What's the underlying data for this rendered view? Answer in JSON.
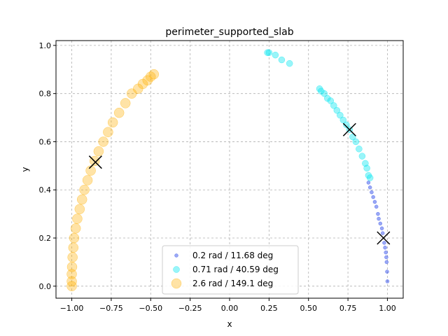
{
  "chart_data": {
    "type": "scatter",
    "title": "perimeter_supported_slab",
    "xlabel": "x",
    "ylabel": "y",
    "xlim": [
      -1.1,
      1.1
    ],
    "ylim": [
      -0.05,
      1.02
    ],
    "xticks": [
      "−1.00",
      "−0.75",
      "−0.50",
      "−0.25",
      "0.00",
      "0.25",
      "0.50",
      "0.75",
      "1.00"
    ],
    "xtick_values": [
      -1.0,
      -0.75,
      -0.5,
      -0.25,
      0.0,
      0.25,
      0.5,
      0.75,
      1.0
    ],
    "yticks": [
      "0.0",
      "0.2",
      "0.4",
      "0.6",
      "0.8",
      "1.0"
    ],
    "ytick_values": [
      0.0,
      0.2,
      0.4,
      0.6,
      0.8,
      1.0
    ],
    "grid": true,
    "legend_position": "lower-center",
    "series": [
      {
        "name": "0.2 rad / 11.68 deg",
        "color": "#1f3fe8",
        "points": [
          [
            0.88,
            0.43
          ],
          [
            0.9,
            0.39
          ],
          [
            0.92,
            0.35
          ],
          [
            0.94,
            0.3
          ],
          [
            0.955,
            0.26
          ],
          [
            0.97,
            0.22
          ],
          [
            0.98,
            0.18
          ],
          [
            0.99,
            0.14
          ],
          [
            0.995,
            0.1
          ],
          [
            0.998,
            0.06
          ],
          [
            1.0,
            0.02
          ],
          [
            0.993,
            0.12
          ],
          [
            0.985,
            0.16
          ],
          [
            0.965,
            0.24
          ],
          [
            0.945,
            0.28
          ],
          [
            0.93,
            0.33
          ],
          [
            0.91,
            0.37
          ],
          [
            0.89,
            0.41
          ]
        ],
        "marker": [
          0.975,
          0.2
        ]
      },
      {
        "name": "0.71 rad / 40.59 deg",
        "color": "#00e5f0",
        "points": [
          [
            0.57,
            0.82
          ],
          [
            0.58,
            0.81
          ],
          [
            0.6,
            0.8
          ],
          [
            0.62,
            0.78
          ],
          [
            0.64,
            0.77
          ],
          [
            0.66,
            0.75
          ],
          [
            0.68,
            0.73
          ],
          [
            0.7,
            0.71
          ],
          [
            0.72,
            0.69
          ],
          [
            0.74,
            0.67
          ],
          [
            0.76,
            0.65
          ],
          [
            0.78,
            0.62
          ],
          [
            0.8,
            0.6
          ],
          [
            0.82,
            0.57
          ],
          [
            0.84,
            0.54
          ],
          [
            0.86,
            0.51
          ],
          [
            0.87,
            0.49
          ],
          [
            0.88,
            0.46
          ],
          [
            0.89,
            0.45
          ],
          [
            0.24,
            0.97
          ],
          [
            0.25,
            0.97
          ],
          [
            0.29,
            0.96
          ],
          [
            0.33,
            0.94
          ],
          [
            0.38,
            0.925
          ]
        ],
        "marker": [
          0.76,
          0.65
        ]
      },
      {
        "name": "2.6 rad / 149.1 deg",
        "color": "#ffb000",
        "points": [
          [
            -1.0,
            0.0
          ],
          [
            -1.0,
            0.02
          ],
          [
            -1.0,
            0.05
          ],
          [
            -0.998,
            0.08
          ],
          [
            -0.995,
            0.12
          ],
          [
            -0.99,
            0.16
          ],
          [
            -0.985,
            0.2
          ],
          [
            -0.975,
            0.24
          ],
          [
            -0.965,
            0.28
          ],
          [
            -0.95,
            0.32
          ],
          [
            -0.935,
            0.36
          ],
          [
            -0.92,
            0.4
          ],
          [
            -0.9,
            0.44
          ],
          [
            -0.88,
            0.48
          ],
          [
            -0.855,
            0.52
          ],
          [
            -0.83,
            0.56
          ],
          [
            -0.8,
            0.6
          ],
          [
            -0.77,
            0.64
          ],
          [
            -0.74,
            0.68
          ],
          [
            -0.7,
            0.72
          ],
          [
            -0.66,
            0.76
          ],
          [
            -0.62,
            0.8
          ],
          [
            -0.58,
            0.82
          ],
          [
            -0.55,
            0.84
          ],
          [
            -0.52,
            0.855
          ],
          [
            -0.5,
            0.87
          ],
          [
            -0.48,
            0.88
          ]
        ],
        "marker": [
          -0.85,
          0.515
        ]
      }
    ]
  }
}
